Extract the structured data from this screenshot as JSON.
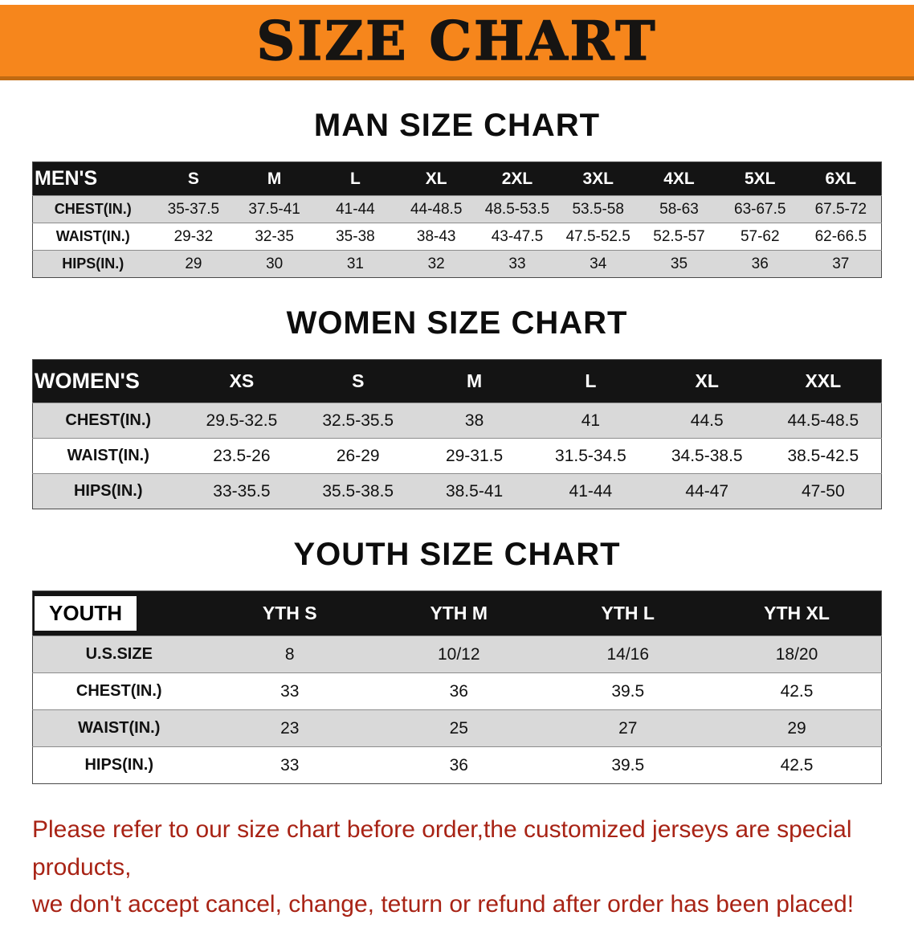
{
  "banner": {
    "title": "SIZE CHART",
    "bg_color": "#F6861C"
  },
  "sections": [
    {
      "heading": "MAN SIZE CHART",
      "table": {
        "label": "MEN'S",
        "columns": [
          "S",
          "M",
          "L",
          "XL",
          "2XL",
          "3XL",
          "4XL",
          "5XL",
          "6XL"
        ],
        "rows": [
          {
            "label": "CHEST(IN.)",
            "values": [
              "35-37.5",
              "37.5-41",
              "41-44",
              "44-48.5",
              "48.5-53.5",
              "53.5-58",
              "58-63",
              "63-67.5",
              "67.5-72"
            ]
          },
          {
            "label": "WAIST(IN.)",
            "values": [
              "29-32",
              "32-35",
              "35-38",
              "38-43",
              "43-47.5",
              "47.5-52.5",
              "52.5-57",
              "57-62",
              "62-66.5"
            ]
          },
          {
            "label": "HIPS(IN.)",
            "values": [
              "29",
              "30",
              "31",
              "32",
              "33",
              "34",
              "35",
              "36",
              "37"
            ]
          }
        ]
      }
    },
    {
      "heading": "WOMEN SIZE CHART",
      "table": {
        "label": "WOMEN'S",
        "columns": [
          "XS",
          "S",
          "M",
          "L",
          "XL",
          "XXL"
        ],
        "rows": [
          {
            "label": "CHEST(IN.)",
            "values": [
              "29.5-32.5",
              "32.5-35.5",
              "38",
              "41",
              "44.5",
              "44.5-48.5"
            ]
          },
          {
            "label": "WAIST(IN.)",
            "values": [
              "23.5-26",
              "26-29",
              "29-31.5",
              "31.5-34.5",
              "34.5-38.5",
              "38.5-42.5"
            ]
          },
          {
            "label": "HIPS(IN.)",
            "values": [
              "33-35.5",
              "35.5-38.5",
              "38.5-41",
              "41-44",
              "44-47",
              "47-50"
            ]
          }
        ]
      }
    },
    {
      "heading": "YOUTH SIZE CHART",
      "table": {
        "label": "YOUTH",
        "columns": [
          "YTH S",
          "YTH M",
          "YTH L",
          "YTH XL"
        ],
        "rows": [
          {
            "label": "U.S.SIZE",
            "values": [
              "8",
              "10/12",
              "14/16",
              "18/20"
            ]
          },
          {
            "label": "CHEST(IN.)",
            "values": [
              "33",
              "36",
              "39.5",
              "42.5"
            ]
          },
          {
            "label": "WAIST(IN.)",
            "values": [
              "23",
              "25",
              "27",
              "29"
            ]
          },
          {
            "label": "HIPS(IN.)",
            "values": [
              "33",
              "36",
              "39.5",
              "42.5"
            ]
          }
        ]
      }
    }
  ],
  "footer": {
    "line1": "Please refer to our size chart before order,the customized jerseys are special products,",
    "line2": "we don't accept cancel, change, teturn or refund after order has been placed!",
    "text_color": "#A82315"
  }
}
